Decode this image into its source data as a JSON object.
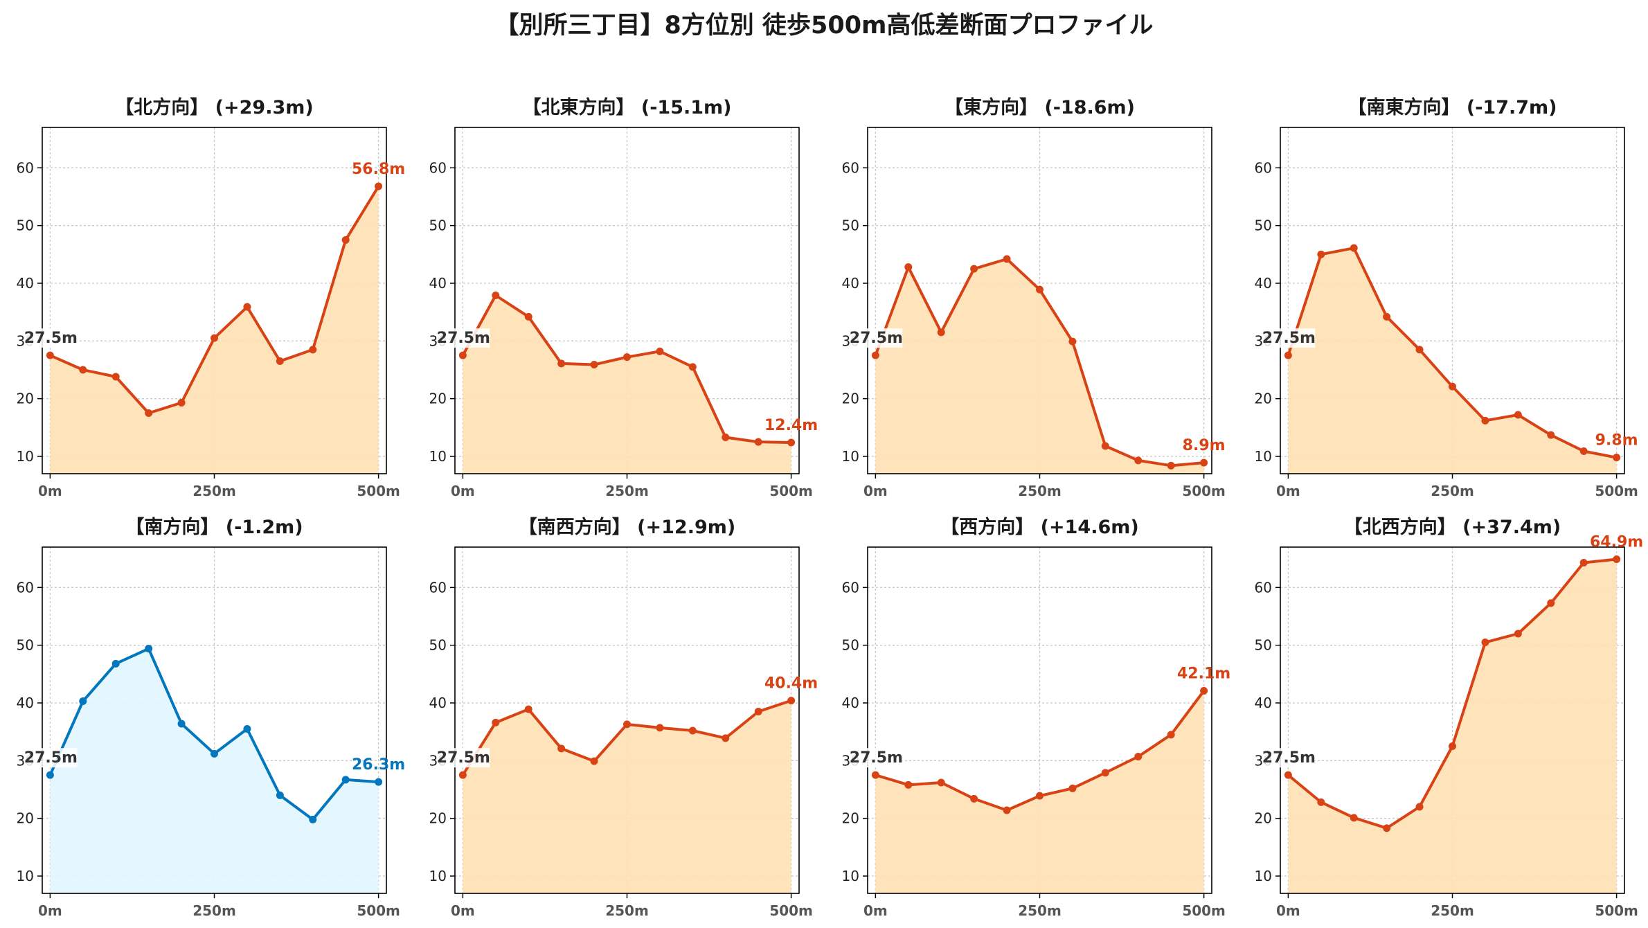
{
  "page_title": "【別所三丁目】8方位別 徒歩500m高低差断面プロファイル",
  "colors": {
    "up": "#d84315",
    "down": "#0277bd",
    "fill_up": "#ffe0b2",
    "fill_down": "#e1f5fe",
    "start_label": "#333333"
  },
  "chart_data": [
    {
      "type": "area",
      "title": "【北方向】 (+29.3m)",
      "color": "up",
      "x": [
        0,
        50,
        100,
        150,
        200,
        250,
        300,
        350,
        400,
        450,
        500
      ],
      "values": [
        27.5,
        25.0,
        23.8,
        17.5,
        19.3,
        30.5,
        35.9,
        26.5,
        28.5,
        47.5,
        56.8
      ],
      "start_label": "27.5m",
      "end_label": "56.8m",
      "xticks": [
        "0m",
        "250m",
        "500m"
      ],
      "yticks": [
        10,
        20,
        30,
        40,
        50,
        60
      ],
      "xlim": [
        -12,
        512
      ],
      "ylim": [
        7,
        67
      ],
      "grid": true
    },
    {
      "type": "area",
      "title": "【北東方向】 (-15.1m)",
      "color": "up",
      "x": [
        0,
        50,
        100,
        150,
        200,
        250,
        300,
        350,
        400,
        450,
        500
      ],
      "values": [
        27.5,
        37.9,
        34.2,
        26.1,
        25.9,
        27.2,
        28.2,
        25.5,
        13.3,
        12.5,
        12.4
      ],
      "start_label": "27.5m",
      "end_label": "12.4m",
      "xticks": [
        "0m",
        "250m",
        "500m"
      ],
      "yticks": [
        10,
        20,
        30,
        40,
        50,
        60
      ],
      "xlim": [
        -12,
        512
      ],
      "ylim": [
        7,
        67
      ],
      "grid": true
    },
    {
      "type": "area",
      "title": "【東方向】 (-18.6m)",
      "color": "up",
      "x": [
        0,
        50,
        100,
        150,
        200,
        250,
        300,
        350,
        400,
        450,
        500
      ],
      "values": [
        27.5,
        42.8,
        31.5,
        42.5,
        44.2,
        38.9,
        29.9,
        11.8,
        9.3,
        8.4,
        8.9
      ],
      "start_label": "27.5m",
      "end_label": "8.9m",
      "xticks": [
        "0m",
        "250m",
        "500m"
      ],
      "yticks": [
        10,
        20,
        30,
        40,
        50,
        60
      ],
      "xlim": [
        -12,
        512
      ],
      "ylim": [
        7,
        67
      ],
      "grid": true
    },
    {
      "type": "area",
      "title": "【南東方向】 (-17.7m)",
      "color": "up",
      "x": [
        0,
        50,
        100,
        150,
        200,
        250,
        300,
        350,
        400,
        450,
        500
      ],
      "values": [
        27.5,
        45.0,
        46.1,
        34.2,
        28.5,
        22.1,
        16.2,
        17.2,
        13.7,
        10.9,
        9.8
      ],
      "start_label": "27.5m",
      "end_label": "9.8m",
      "xticks": [
        "0m",
        "250m",
        "500m"
      ],
      "yticks": [
        10,
        20,
        30,
        40,
        50,
        60
      ],
      "xlim": [
        -12,
        512
      ],
      "ylim": [
        7,
        67
      ],
      "grid": true
    },
    {
      "type": "area",
      "title": "【南方向】 (-1.2m)",
      "color": "down",
      "x": [
        0,
        50,
        100,
        150,
        200,
        250,
        300,
        350,
        400,
        450,
        500
      ],
      "values": [
        27.5,
        40.3,
        46.8,
        49.4,
        36.4,
        31.2,
        35.5,
        24.0,
        19.8,
        26.7,
        26.3
      ],
      "start_label": "27.5m",
      "end_label": "26.3m",
      "xticks": [
        "0m",
        "250m",
        "500m"
      ],
      "yticks": [
        10,
        20,
        30,
        40,
        50,
        60
      ],
      "xlim": [
        -12,
        512
      ],
      "ylim": [
        7,
        67
      ],
      "grid": true
    },
    {
      "type": "area",
      "title": "【南西方向】 (+12.9m)",
      "color": "up",
      "x": [
        0,
        50,
        100,
        150,
        200,
        250,
        300,
        350,
        400,
        450,
        500
      ],
      "values": [
        27.5,
        36.6,
        38.9,
        32.1,
        29.9,
        36.3,
        35.7,
        35.2,
        33.9,
        38.5,
        40.4
      ],
      "start_label": "27.5m",
      "end_label": "40.4m",
      "xticks": [
        "0m",
        "250m",
        "500m"
      ],
      "yticks": [
        10,
        20,
        30,
        40,
        50,
        60
      ],
      "xlim": [
        -12,
        512
      ],
      "ylim": [
        7,
        67
      ],
      "grid": true
    },
    {
      "type": "area",
      "title": "【西方向】 (+14.6m)",
      "color": "up",
      "x": [
        0,
        50,
        100,
        150,
        200,
        250,
        300,
        350,
        400,
        450,
        500
      ],
      "values": [
        27.5,
        25.8,
        26.2,
        23.4,
        21.4,
        23.9,
        25.2,
        27.9,
        30.7,
        34.5,
        42.1
      ],
      "start_label": "27.5m",
      "end_label": "42.1m",
      "xticks": [
        "0m",
        "250m",
        "500m"
      ],
      "yticks": [
        10,
        20,
        30,
        40,
        50,
        60
      ],
      "xlim": [
        -12,
        512
      ],
      "ylim": [
        7,
        67
      ],
      "grid": true
    },
    {
      "type": "area",
      "title": "【北西方向】 (+37.4m)",
      "color": "up",
      "x": [
        0,
        50,
        100,
        150,
        200,
        250,
        300,
        350,
        400,
        450,
        500
      ],
      "values": [
        27.5,
        22.8,
        20.1,
        18.3,
        22.0,
        32.5,
        50.5,
        52.0,
        57.3,
        64.3,
        64.9
      ],
      "start_label": "27.5m",
      "end_label": "64.9m",
      "xticks": [
        "0m",
        "250m",
        "500m"
      ],
      "yticks": [
        10,
        20,
        30,
        40,
        50,
        60
      ],
      "xlim": [
        -12,
        512
      ],
      "ylim": [
        7,
        67
      ],
      "grid": true
    }
  ]
}
